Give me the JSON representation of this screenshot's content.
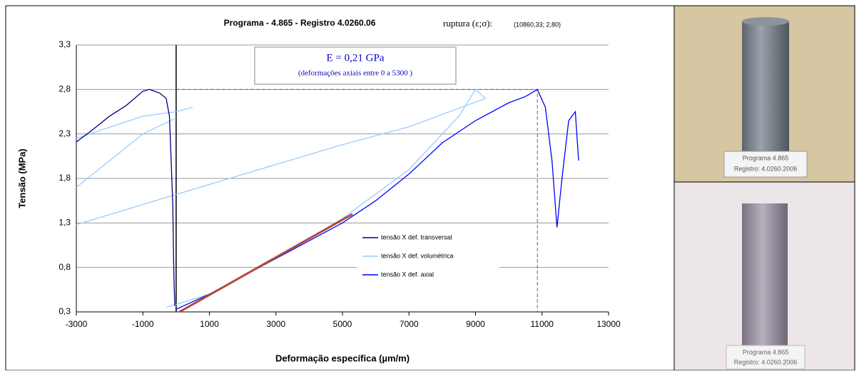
{
  "chart_data": {
    "type": "line",
    "title": "Programa - 4.865 - Registro  4.0260.06",
    "rupture_label": "ruptura (ε;σ):",
    "rupture": {
      "x": 10860.33,
      "y": 2.8,
      "label": "(10860,33; 2,80)"
    },
    "annotation": {
      "title": "E = 0,21 GPa",
      "subtitle": "(deformações axiais entre 0 a 5300 )"
    },
    "x_label": "Deformação específica (µm/m)",
    "y_label": "Tensão (MPa)",
    "xlim": [
      -3000,
      13000
    ],
    "xticks": [
      -3000,
      -1000,
      1000,
      3000,
      5000,
      7000,
      9000,
      11000,
      13000
    ],
    "ylim": [
      0.3,
      3.3
    ],
    "yticks": [
      {
        "value": 0.3,
        "label": "0,3"
      },
      {
        "value": 0.8,
        "label": "0,8"
      },
      {
        "value": 1.3,
        "label": "1,3"
      },
      {
        "value": 1.8,
        "label": "1,8"
      },
      {
        "value": 2.3,
        "label": "2,3"
      },
      {
        "value": 2.8,
        "label": "2,8"
      },
      {
        "value": 3.3,
        "label": "3,3"
      }
    ],
    "grid": true,
    "legend": "lower-center",
    "series": [
      {
        "name": "tensão X def. transversal",
        "color": "#000080",
        "x": [
          -3000,
          -2500,
          -2000,
          -1500,
          -1000,
          -800,
          -500,
          -300,
          -200,
          -150,
          -100,
          -80,
          -60,
          -40
        ],
        "values": [
          2.21,
          2.35,
          2.5,
          2.62,
          2.78,
          2.8,
          2.76,
          2.7,
          2.5,
          2.0,
          1.5,
          1.0,
          0.6,
          0.37
        ]
      },
      {
        "name": "tensão X def. volumétrica",
        "color": "#99ccff",
        "x": [
          -300,
          1000,
          3000,
          5000,
          7000,
          8500,
          9000,
          9300,
          7000,
          5000,
          0,
          -3000,
          null,
          -3000,
          -1000,
          0,
          null,
          -3000,
          -1000,
          0,
          500
        ],
        "values": [
          0.35,
          0.5,
          0.9,
          1.35,
          1.9,
          2.5,
          2.8,
          2.7,
          2.38,
          2.18,
          1.62,
          1.28,
          null,
          1.7,
          2.3,
          2.48,
          null,
          2.25,
          2.5,
          2.55,
          2.6
        ]
      },
      {
        "name": "tensão X def. axial",
        "color": "#0000ff",
        "x": [
          0,
          1000,
          2000,
          3000,
          4000,
          5000,
          6000,
          7000,
          8000,
          9000,
          10000,
          10500,
          10860,
          11100,
          11300,
          11450,
          11600,
          11800,
          12000,
          12100
        ],
        "values": [
          0.33,
          0.5,
          0.7,
          0.9,
          1.1,
          1.3,
          1.55,
          1.85,
          2.2,
          2.45,
          2.65,
          2.72,
          2.8,
          2.6,
          2.0,
          1.25,
          1.8,
          2.45,
          2.55,
          2.0
        ]
      }
    ],
    "fit_line": {
      "color": "#b04a3c",
      "x": [
        100,
        5300
      ],
      "values": [
        0.3,
        1.4
      ]
    }
  },
  "photos": [
    {
      "caption_1": "Programa 4.865",
      "caption_2": "Registro: 4.0260.2006"
    },
    {
      "caption_1": "Programa 4.865",
      "caption_2": "Registro: 4.0260.2006"
    }
  ]
}
